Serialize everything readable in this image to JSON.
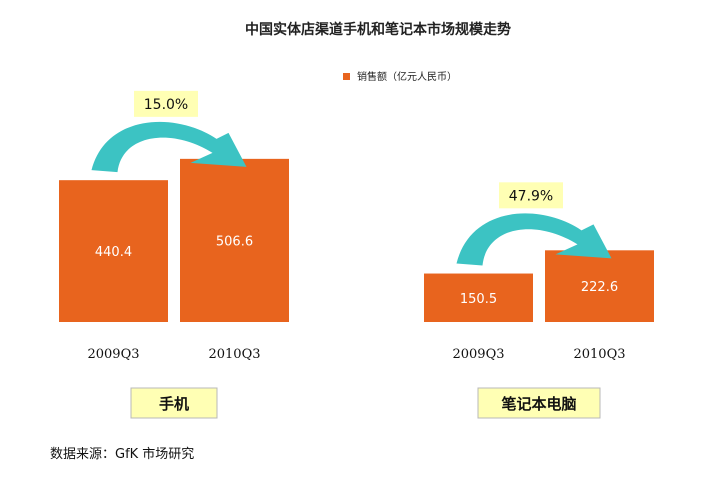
{
  "title": "中国实体店渠道手机和笔记本市场规模走势",
  "legend": {
    "label": "销售额（亿元人民币）",
    "color": "#E8641E"
  },
  "source": "数据来源：GfK 市场研究",
  "colors": {
    "bar": "#E8641E",
    "arrow": "#3CC3C3",
    "box": "#FFFFB4",
    "box_border": "#B8B8B8"
  },
  "chart_data": [
    {
      "type": "bar",
      "group_label": "手机",
      "categories": [
        "2009Q3",
        "2010Q3"
      ],
      "series": [
        {
          "name": "销售额（亿元人民币）",
          "values": [
            440.4,
            506.6
          ]
        }
      ],
      "growth_label": "15.0%",
      "ylim": [
        0,
        590
      ]
    },
    {
      "type": "bar",
      "group_label": "笔记本电脑",
      "categories": [
        "2009Q3",
        "2010Q3"
      ],
      "series": [
        {
          "name": "销售额（亿元人民币）",
          "values": [
            150.5,
            222.6
          ]
        }
      ],
      "growth_label": "47.9%",
      "ylim": [
        0,
        590
      ]
    }
  ]
}
